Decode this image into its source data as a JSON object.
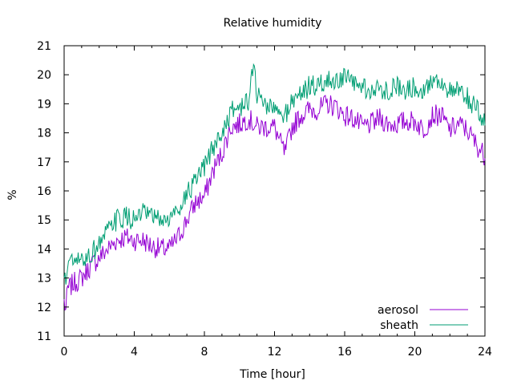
{
  "chart_data": {
    "type": "line",
    "title": "Relative humidity",
    "xlabel": "Time [hour]",
    "ylabel": "%",
    "xlim": [
      0,
      24
    ],
    "ylim": [
      11,
      21
    ],
    "xticks": [
      0,
      4,
      8,
      12,
      16,
      20,
      24
    ],
    "yticks": [
      11,
      12,
      13,
      14,
      15,
      16,
      17,
      18,
      19,
      20,
      21
    ],
    "grid": false,
    "legend_position": "bottom-right",
    "series": [
      {
        "name": "aerosol",
        "color": "#9400d3",
        "x": [
          0,
          0.1,
          0.2,
          0.5,
          1,
          1.5,
          2,
          2.5,
          3,
          3.5,
          4,
          4.5,
          5,
          5.5,
          6,
          6.5,
          7,
          7.5,
          8,
          8.5,
          9,
          9.5,
          10,
          10.5,
          11,
          11.5,
          12,
          12.3,
          12.6,
          13,
          13.5,
          14,
          14.5,
          15,
          15.5,
          16,
          16.5,
          17,
          17.5,
          18,
          18.5,
          19,
          19.5,
          20,
          20.5,
          21,
          21.5,
          22,
          22.5,
          23,
          23.5,
          24
        ],
        "y": [
          12.2,
          11.9,
          12.6,
          12.8,
          13.0,
          13.4,
          13.7,
          14.0,
          14.3,
          14.4,
          14.3,
          14.3,
          14.1,
          14.0,
          14.0,
          14.4,
          15.0,
          15.6,
          15.8,
          16.7,
          17.3,
          18.2,
          18.3,
          18.5,
          18.2,
          18.2,
          18.2,
          17.7,
          17.3,
          18.2,
          18.6,
          18.8,
          18.8,
          19.0,
          18.9,
          18.6,
          18.5,
          18.2,
          18.3,
          18.5,
          18.3,
          18.3,
          18.4,
          18.4,
          18.1,
          18.6,
          18.6,
          18.1,
          18.3,
          18.1,
          17.6,
          17.2
        ]
      },
      {
        "name": "sheath",
        "color": "#009e73",
        "x": [
          0,
          0.1,
          0.2,
          0.5,
          1,
          1.5,
          2,
          2.5,
          3,
          3.5,
          4,
          4.5,
          5,
          5.5,
          6,
          6.5,
          7,
          7.5,
          8,
          8.5,
          9,
          9.5,
          10,
          10.5,
          10.8,
          11,
          11.5,
          12,
          12.5,
          13,
          13.5,
          14,
          14.5,
          15,
          15.5,
          16,
          16.5,
          17,
          17.5,
          18,
          18.5,
          19,
          19.5,
          20,
          20.5,
          21,
          21.5,
          22,
          22.5,
          23,
          23.5,
          24
        ],
        "y": [
          13.0,
          12.8,
          13.6,
          13.5,
          13.6,
          13.8,
          14.2,
          14.6,
          15.0,
          15.1,
          15.0,
          15.2,
          15.1,
          15.0,
          15.0,
          15.4,
          15.9,
          16.3,
          16.8,
          17.5,
          18.0,
          18.7,
          18.9,
          19.0,
          20.5,
          19.3,
          19.0,
          18.8,
          18.5,
          19.1,
          19.4,
          19.6,
          19.6,
          19.8,
          19.8,
          19.9,
          19.7,
          19.6,
          19.4,
          19.5,
          19.5,
          19.6,
          19.5,
          19.6,
          19.5,
          19.8,
          19.8,
          19.4,
          19.4,
          19.2,
          18.8,
          18.4
        ]
      }
    ]
  }
}
